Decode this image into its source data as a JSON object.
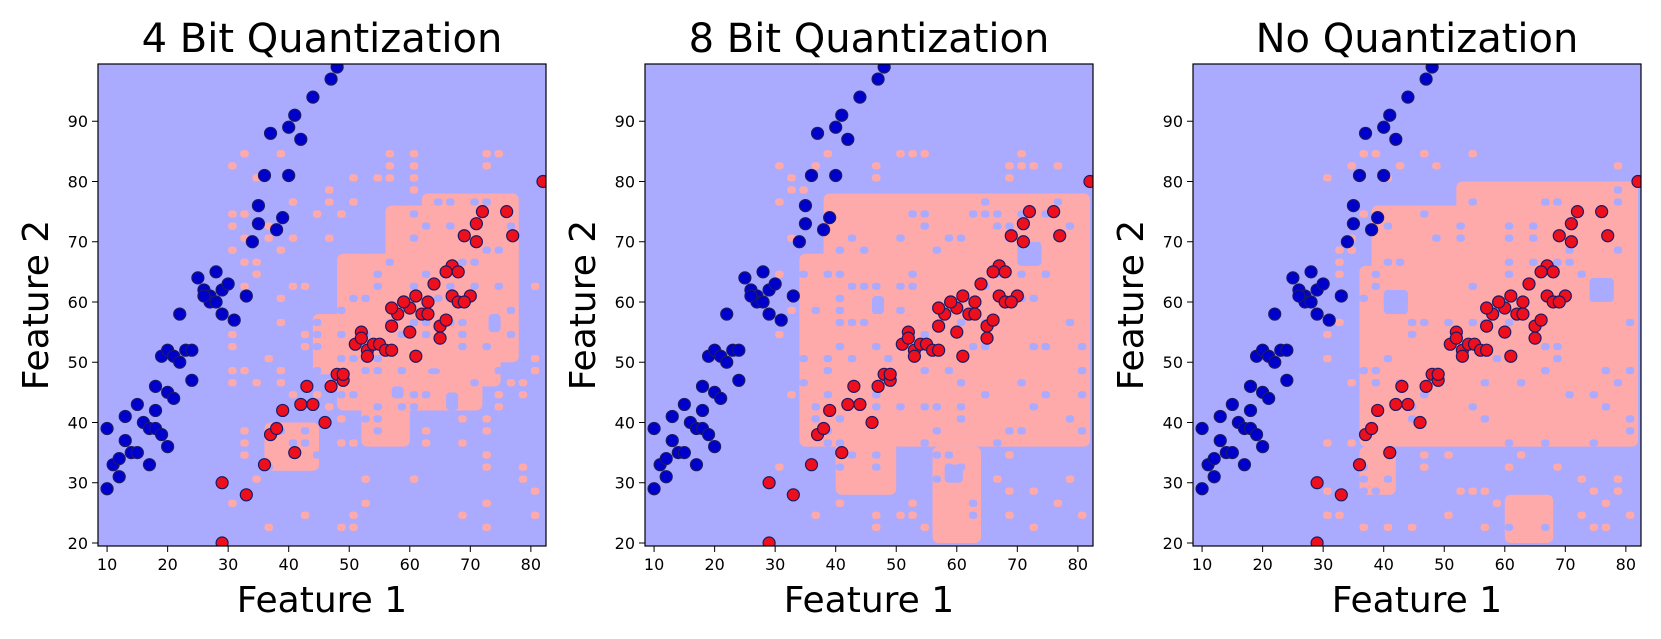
{
  "figure": {
    "colors": {
      "region_blue": "#aaaaff",
      "region_red": "#ffaaaa",
      "point_blue": "#0000cc",
      "point_red": "#ee0f1d",
      "point_edge": "#1a1a66"
    }
  },
  "chart_data": [
    {
      "type": "scatter",
      "title": "4 Bit Quantization",
      "xlabel": "Feature 1",
      "ylabel": "Feature 2",
      "xlim": [
        8.5,
        82.5
      ],
      "ylim": [
        19.5,
        99.5
      ],
      "xticks": [
        "10",
        "20",
        "30",
        "40",
        "50",
        "60",
        "70",
        "80"
      ],
      "yticks": [
        "20",
        "30",
        "40",
        "50",
        "60",
        "70",
        "80",
        "90"
      ],
      "grid": false,
      "series": [
        {
          "class": 0,
          "color": "#0000cc",
          "x": [
            10,
            12,
            11,
            14,
            13,
            12,
            16,
            15,
            17,
            18,
            18,
            19,
            20,
            21,
            20,
            22,
            23,
            22,
            24,
            25,
            26,
            27,
            27,
            28,
            29,
            29,
            30,
            31,
            33,
            34,
            35,
            35,
            36,
            37,
            38,
            39,
            40,
            41,
            40,
            42,
            44,
            47,
            48,
            10,
            13,
            15,
            18,
            19,
            21,
            24,
            26,
            28,
            17,
            20
          ],
          "y": [
            29,
            31,
            33,
            35,
            37,
            34,
            40,
            35,
            39,
            42,
            46,
            51,
            52,
            51,
            45,
            50,
            52,
            58,
            52,
            64,
            62,
            61,
            60,
            65,
            62,
            58,
            63,
            57,
            61,
            70,
            73,
            76,
            81,
            88,
            72,
            74,
            89,
            91,
            81,
            87,
            94,
            97,
            99,
            39,
            41,
            43,
            39,
            38,
            44,
            47,
            61,
            60,
            33,
            36
          ]
        },
        {
          "class": 1,
          "color": "#ee0f1d",
          "x": [
            29,
            29,
            33,
            36,
            37,
            38,
            39,
            41,
            42,
            43,
            44,
            46,
            47,
            48,
            49,
            51,
            52,
            52,
            53,
            54,
            55,
            56,
            57,
            57,
            58,
            59,
            60,
            60,
            61,
            62,
            63,
            64,
            65,
            66,
            67,
            67,
            68,
            69,
            70,
            71,
            72,
            76,
            77,
            82,
            49,
            53,
            57,
            59,
            61,
            63,
            65,
            66,
            68,
            69,
            71
          ],
          "y": [
            20,
            30,
            28,
            33,
            38,
            39,
            42,
            35,
            43,
            46,
            43,
            40,
            46,
            48,
            47,
            53,
            55,
            54,
            52,
            53,
            53,
            52,
            56,
            52,
            58,
            60,
            59,
            55,
            61,
            58,
            60,
            63,
            56,
            57,
            61,
            66,
            65,
            71,
            61,
            70,
            75,
            75,
            71,
            80,
            48,
            51,
            59,
            60,
            51,
            58,
            54,
            65,
            60,
            60,
            73
          ]
        }
      ],
      "decision_regions": {
        "background_class": 0,
        "class1_boxes": [
          [
            48,
            72,
            42,
            68
          ],
          [
            56,
            75,
            46,
            76
          ],
          [
            62,
            78,
            50,
            78
          ],
          [
            52,
            60,
            36,
            48
          ],
          [
            36,
            45,
            32,
            40
          ],
          [
            44,
            50,
            48,
            58
          ]
        ],
        "class0_holes": [
          [
            57,
            59,
            44,
            46
          ],
          [
            63,
            65,
            48,
            49
          ],
          [
            66,
            68,
            42,
            45
          ],
          [
            73,
            75,
            55,
            58
          ]
        ],
        "noise_seed": 3,
        "noise_density": 0.18
      }
    },
    {
      "type": "scatter",
      "title": "8 Bit Quantization",
      "xlabel": "Feature 1",
      "ylabel": "Feature 2",
      "xlim": [
        8.5,
        82.5
      ],
      "ylim": [
        19.5,
        99.5
      ],
      "xticks": [
        "10",
        "20",
        "30",
        "40",
        "50",
        "60",
        "70",
        "80"
      ],
      "yticks": [
        "20",
        "30",
        "40",
        "50",
        "60",
        "70",
        "80",
        "90"
      ],
      "grid": false,
      "series": [
        {
          "class": 0,
          "color": "#0000cc",
          "x": [
            10,
            12,
            11,
            14,
            13,
            12,
            16,
            15,
            17,
            18,
            18,
            19,
            20,
            21,
            20,
            22,
            23,
            22,
            24,
            25,
            26,
            27,
            27,
            28,
            29,
            29,
            30,
            31,
            33,
            34,
            35,
            35,
            36,
            37,
            38,
            39,
            40,
            41,
            40,
            42,
            44,
            47,
            48,
            10,
            13,
            15,
            18,
            19,
            21,
            24,
            26,
            28,
            17,
            20
          ],
          "y": [
            29,
            31,
            33,
            35,
            37,
            34,
            40,
            35,
            39,
            42,
            46,
            51,
            52,
            51,
            45,
            50,
            52,
            58,
            52,
            64,
            62,
            61,
            60,
            65,
            62,
            58,
            63,
            57,
            61,
            70,
            73,
            76,
            81,
            88,
            72,
            74,
            89,
            91,
            81,
            87,
            94,
            97,
            99,
            39,
            41,
            43,
            39,
            38,
            44,
            47,
            61,
            60,
            33,
            36
          ]
        },
        {
          "class": 1,
          "color": "#ee0f1d",
          "x": [
            29,
            29,
            33,
            36,
            37,
            38,
            39,
            41,
            42,
            43,
            44,
            46,
            47,
            48,
            49,
            51,
            52,
            52,
            53,
            54,
            55,
            56,
            57,
            57,
            58,
            59,
            60,
            60,
            61,
            62,
            63,
            64,
            65,
            66,
            67,
            67,
            68,
            69,
            70,
            71,
            72,
            76,
            77,
            82,
            49,
            53,
            57,
            59,
            61,
            63,
            65,
            66,
            68,
            69,
            71
          ],
          "y": [
            20,
            30,
            28,
            33,
            38,
            39,
            42,
            35,
            43,
            46,
            43,
            40,
            46,
            48,
            47,
            53,
            55,
            54,
            52,
            53,
            53,
            52,
            56,
            52,
            58,
            60,
            59,
            55,
            61,
            58,
            60,
            63,
            56,
            57,
            61,
            66,
            65,
            71,
            61,
            70,
            75,
            75,
            71,
            80,
            48,
            51,
            59,
            60,
            51,
            58,
            54,
            65,
            60,
            60,
            73
          ]
        }
      ],
      "decision_regions": {
        "background_class": 0,
        "class1_boxes": [
          [
            34,
            82,
            36,
            68
          ],
          [
            38,
            82,
            40,
            78
          ],
          [
            50,
            82,
            44,
            78
          ],
          [
            40,
            50,
            28,
            38
          ],
          [
            44,
            56,
            68,
            78
          ],
          [
            56,
            64,
            20,
            36
          ]
        ],
        "class0_holes": [
          [
            58,
            61,
            30,
            33
          ],
          [
            70,
            74,
            66,
            70
          ],
          [
            46,
            48,
            58,
            61
          ]
        ],
        "noise_seed": 7,
        "noise_density": 0.16
      }
    },
    {
      "type": "scatter",
      "title": "No Quantization",
      "xlabel": "Feature 1",
      "ylabel": "Feature 2",
      "xlim": [
        8.5,
        82.5
      ],
      "ylim": [
        19.5,
        99.5
      ],
      "xticks": [
        "10",
        "20",
        "30",
        "40",
        "50",
        "60",
        "70",
        "80"
      ],
      "yticks": [
        "20",
        "30",
        "40",
        "50",
        "60",
        "70",
        "80",
        "90"
      ],
      "grid": false,
      "series": [
        {
          "class": 0,
          "color": "#0000cc",
          "x": [
            10,
            12,
            11,
            14,
            13,
            12,
            16,
            15,
            17,
            18,
            18,
            19,
            20,
            21,
            20,
            22,
            23,
            22,
            24,
            25,
            26,
            27,
            27,
            28,
            29,
            29,
            30,
            31,
            33,
            34,
            35,
            35,
            36,
            37,
            38,
            39,
            40,
            41,
            40,
            42,
            44,
            47,
            48,
            10,
            13,
            15,
            18,
            19,
            21,
            24,
            26,
            28,
            17,
            20
          ],
          "y": [
            29,
            31,
            33,
            35,
            37,
            34,
            40,
            35,
            39,
            42,
            46,
            51,
            52,
            51,
            45,
            50,
            52,
            58,
            52,
            64,
            62,
            61,
            60,
            65,
            62,
            58,
            63,
            57,
            61,
            70,
            73,
            76,
            81,
            88,
            72,
            74,
            89,
            91,
            81,
            87,
            94,
            97,
            99,
            39,
            41,
            43,
            39,
            38,
            44,
            47,
            61,
            60,
            33,
            36
          ]
        },
        {
          "class": 1,
          "color": "#ee0f1d",
          "x": [
            29,
            29,
            33,
            36,
            37,
            38,
            39,
            41,
            42,
            43,
            44,
            46,
            47,
            48,
            49,
            51,
            52,
            52,
            53,
            54,
            55,
            56,
            57,
            57,
            58,
            59,
            60,
            60,
            61,
            62,
            63,
            64,
            65,
            66,
            67,
            67,
            68,
            69,
            70,
            71,
            72,
            76,
            77,
            82,
            49,
            53,
            57,
            59,
            61,
            63,
            65,
            66,
            68,
            69,
            71
          ],
          "y": [
            20,
            30,
            28,
            33,
            38,
            39,
            42,
            35,
            43,
            46,
            43,
            40,
            46,
            48,
            47,
            53,
            55,
            54,
            52,
            53,
            53,
            52,
            56,
            52,
            58,
            60,
            59,
            55,
            61,
            58,
            60,
            63,
            56,
            57,
            61,
            66,
            65,
            71,
            61,
            70,
            75,
            75,
            71,
            80,
            48,
            51,
            59,
            60,
            51,
            58,
            54,
            65,
            60,
            60,
            73
          ]
        }
      ],
      "decision_regions": {
        "background_class": 0,
        "class1_boxes": [
          [
            36,
            82,
            36,
            66
          ],
          [
            38,
            82,
            40,
            76
          ],
          [
            52,
            82,
            44,
            80
          ],
          [
            44,
            70,
            64,
            76
          ],
          [
            36,
            42,
            28,
            36
          ],
          [
            60,
            68,
            20,
            28
          ]
        ],
        "class0_holes": [
          [
            62,
            66,
            30,
            34
          ],
          [
            74,
            78,
            60,
            64
          ],
          [
            40,
            44,
            58,
            62
          ]
        ],
        "noise_seed": 11,
        "noise_density": 0.17
      }
    }
  ]
}
